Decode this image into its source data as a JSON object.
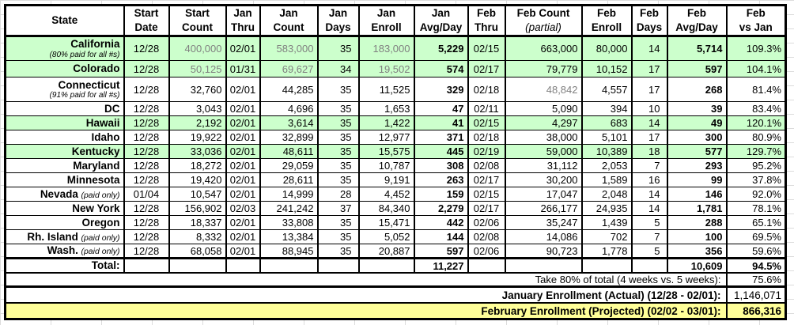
{
  "table": {
    "columns": [
      {
        "id": "state",
        "line1": "State",
        "line2": "",
        "align": "center"
      },
      {
        "id": "start_date",
        "line1": "Start",
        "line2": "Date",
        "align": "center"
      },
      {
        "id": "start_count",
        "line1": "Start",
        "line2": "Count",
        "align": "right"
      },
      {
        "id": "jan_thru",
        "line1": "Jan",
        "line2": "Thru",
        "align": "center"
      },
      {
        "id": "jan_count",
        "line1": "Jan",
        "line2": "Count",
        "align": "right"
      },
      {
        "id": "jan_days",
        "line1": "Jan",
        "line2": "Days",
        "align": "right"
      },
      {
        "id": "jan_enroll",
        "line1": "Jan",
        "line2": "Enroll",
        "align": "right"
      },
      {
        "id": "jan_avg_day",
        "line1": "Jan",
        "line2": "Avg/Day",
        "align": "right",
        "bold": true
      },
      {
        "id": "feb_thru",
        "line1": "Feb",
        "line2": "Thru",
        "align": "center"
      },
      {
        "id": "feb_count",
        "line1": "Feb Count",
        "line2": "(partial)",
        "italic2": true,
        "align": "right"
      },
      {
        "id": "feb_enroll",
        "line1": "Feb",
        "line2": "Enroll",
        "align": "right"
      },
      {
        "id": "feb_days",
        "line1": "Feb",
        "line2": "Days",
        "align": "right"
      },
      {
        "id": "feb_avg_day",
        "line1": "Feb",
        "line2": "Avg/Day",
        "align": "right",
        "bold": true
      },
      {
        "id": "feb_vs_jan",
        "line1": "Feb",
        "line2": "vs Jan",
        "align": "right"
      }
    ],
    "rows": [
      {
        "state": "California",
        "note": "(80% paid for all #s)",
        "note_block": true,
        "green": true,
        "gray": [
          1,
          3,
          5
        ],
        "values": [
          "12/28",
          "400,000",
          "02/01",
          "583,000",
          "35",
          "183,000",
          "5,229",
          "02/15",
          "663,000",
          "80,000",
          "14",
          "5,714",
          "109.3%"
        ]
      },
      {
        "state": "Colorado",
        "green": true,
        "gray": [
          1,
          3,
          5
        ],
        "values": [
          "12/28",
          "50,125",
          "01/31",
          "69,627",
          "34",
          "19,502",
          "574",
          "02/17",
          "79,779",
          "10,152",
          "17",
          "597",
          "104.1%"
        ]
      },
      {
        "state": "Connecticut",
        "note": "(91% paid for all #s)",
        "note_block": true,
        "gray": [
          8
        ],
        "values": [
          "12/28",
          "32,760",
          "02/01",
          "44,285",
          "35",
          "11,525",
          "329",
          "02/18",
          "48,842",
          "4,557",
          "17",
          "268",
          "81.4%"
        ]
      },
      {
        "state": "DC",
        "values": [
          "12/28",
          "3,043",
          "02/01",
          "4,696",
          "35",
          "1,653",
          "47",
          "02/11",
          "5,090",
          "394",
          "10",
          "39",
          "83.4%"
        ]
      },
      {
        "state": "Hawaii",
        "green": true,
        "values": [
          "12/28",
          "2,192",
          "02/01",
          "3,614",
          "35",
          "1,422",
          "41",
          "02/15",
          "4,297",
          "683",
          "14",
          "49",
          "120.1%"
        ]
      },
      {
        "state": "Idaho",
        "values": [
          "12/28",
          "19,922",
          "02/01",
          "32,899",
          "35",
          "12,977",
          "371",
          "02/18",
          "38,000",
          "5,101",
          "17",
          "300",
          "80.9%"
        ]
      },
      {
        "state": "Kentucky",
        "green": true,
        "values": [
          "12/28",
          "33,036",
          "02/01",
          "48,611",
          "35",
          "15,575",
          "445",
          "02/19",
          "59,000",
          "10,389",
          "18",
          "577",
          "129.7%"
        ]
      },
      {
        "state": "Maryland",
        "values": [
          "12/28",
          "18,272",
          "02/01",
          "29,059",
          "35",
          "10,787",
          "308",
          "02/08",
          "31,112",
          "2,053",
          "7",
          "293",
          "95.2%"
        ]
      },
      {
        "state": "Minnesota",
        "values": [
          "12/28",
          "19,420",
          "02/01",
          "28,611",
          "35",
          "9,191",
          "263",
          "02/17",
          "30,200",
          "1,589",
          "16",
          "99",
          "37.8%"
        ]
      },
      {
        "state": "Nevada",
        "note": "(paid only)",
        "values": [
          "01/04",
          "10,547",
          "02/01",
          "14,999",
          "28",
          "4,452",
          "159",
          "02/15",
          "17,047",
          "2,048",
          "14",
          "146",
          "92.0%"
        ]
      },
      {
        "state": "New York",
        "values": [
          "12/28",
          "156,902",
          "02/03",
          "241,242",
          "37",
          "84,340",
          "2,279",
          "02/17",
          "266,177",
          "24,935",
          "14",
          "1,781",
          "78.1%"
        ]
      },
      {
        "state": "Oregon",
        "values": [
          "12/28",
          "18,337",
          "02/01",
          "33,808",
          "35",
          "15,471",
          "442",
          "02/06",
          "35,247",
          "1,439",
          "5",
          "288",
          "65.1%"
        ]
      },
      {
        "state": "Rh. Island",
        "note": "(paid only)",
        "values": [
          "12/28",
          "8,332",
          "02/01",
          "13,384",
          "35",
          "5,052",
          "144",
          "02/08",
          "14,086",
          "702",
          "7",
          "100",
          "69.5%"
        ]
      },
      {
        "state": "Wash.",
        "note": "(paid only)",
        "values": [
          "12/28",
          "68,058",
          "02/01",
          "88,945",
          "35",
          "20,887",
          "597",
          "02/06",
          "90,723",
          "1,778",
          "5",
          "356",
          "59.6%"
        ]
      }
    ],
    "total": {
      "label": "Total:",
      "jan_avg_day": "11,227",
      "feb_avg_day": "10,609",
      "feb_vs_jan": "94.5%"
    },
    "summary": [
      {
        "label": "Take 80% of total (4 weeks vs. 5 weeks):",
        "value": "75.6%",
        "bold_label": false,
        "bold_value": false
      },
      {
        "label": "January Enrollment (Actual) (12/28 - 02/01):",
        "value": "1,146,071",
        "bold_label": true,
        "bold_value": false
      },
      {
        "label": "February Enrollment (Projected) (02/02 - 03/01):",
        "value": "866,316",
        "bold_label": true,
        "bold_value": true
      }
    ]
  },
  "colors": {
    "row_highlight_green": "#ccffcc",
    "projected_row_yellow": "#ffff99",
    "estimate_gray_text": "#808080"
  }
}
